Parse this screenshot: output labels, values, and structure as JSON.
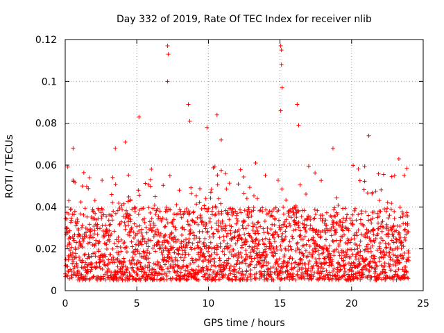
{
  "chart_data": {
    "type": "scatter",
    "title": "Day 332 of 2019, Rate Of TEC Index for receiver nlib",
    "xlabel": "GPS time / hours",
    "ylabel": "ROTI / TECUs",
    "xlim": [
      0,
      25
    ],
    "ylim": [
      0,
      0.12
    ],
    "xticks": [
      0,
      5,
      10,
      15,
      20,
      25
    ],
    "yticks": [
      0,
      0.02,
      0.04,
      0.06,
      0.08,
      0.1,
      0.12
    ],
    "grid": true,
    "marker": "+",
    "color": "#ff0000",
    "x_data_range": [
      0,
      24
    ],
    "baseline_band": [
      0.005,
      0.03
    ],
    "typical_peak_envelope": [
      0.04,
      0.06
    ],
    "notable_peaks": [
      {
        "x": 0.25,
        "y": 0.043
      },
      {
        "x": 0.55,
        "y": 0.068
      },
      {
        "x": 1.2,
        "y": 0.05
      },
      {
        "x": 3.5,
        "y": 0.068
      },
      {
        "x": 4.2,
        "y": 0.071
      },
      {
        "x": 5.15,
        "y": 0.083
      },
      {
        "x": 7.15,
        "y": 0.117
      },
      {
        "x": 7.2,
        "y": 0.113
      },
      {
        "x": 7.15,
        "y": 0.1
      },
      {
        "x": 8.6,
        "y": 0.089
      },
      {
        "x": 8.7,
        "y": 0.081
      },
      {
        "x": 9.9,
        "y": 0.078
      },
      {
        "x": 10.6,
        "y": 0.084
      },
      {
        "x": 10.9,
        "y": 0.072
      },
      {
        "x": 13.3,
        "y": 0.061
      },
      {
        "x": 15.05,
        "y": 0.117
      },
      {
        "x": 15.1,
        "y": 0.115
      },
      {
        "x": 15.1,
        "y": 0.108
      },
      {
        "x": 15.15,
        "y": 0.097
      },
      {
        "x": 15.05,
        "y": 0.086
      },
      {
        "x": 16.2,
        "y": 0.089
      },
      {
        "x": 16.3,
        "y": 0.079
      },
      {
        "x": 18.7,
        "y": 0.068
      },
      {
        "x": 21.2,
        "y": 0.074
      },
      {
        "x": 23.3,
        "y": 0.063
      }
    ]
  }
}
